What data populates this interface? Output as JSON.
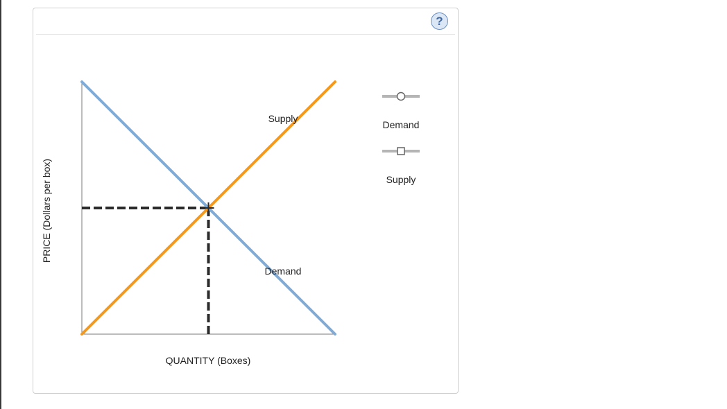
{
  "help": {
    "glyph": "?",
    "icon": "question-mark-icon"
  },
  "colors": {
    "demand": "#7fabd6",
    "supply": "#f4991c",
    "guide": "#2b2b2b",
    "axis": "#7a7a7a",
    "legend_marker": "#b5b5b5",
    "legend_marker_stroke": "#666666"
  },
  "legend": [
    {
      "label": "Demand",
      "marker": "circle"
    },
    {
      "label": "Supply",
      "marker": "square"
    }
  ],
  "chart_data": {
    "type": "line",
    "xlabel": "QUANTITY (Boxes)",
    "ylabel": "PRICE (Dollars per box)",
    "xlim": [
      0,
      1
    ],
    "ylim": [
      0,
      1
    ],
    "ticks_shown": false,
    "grid": false,
    "series": [
      {
        "name": "Demand",
        "x": [
          0,
          1
        ],
        "y": [
          1,
          0
        ]
      },
      {
        "name": "Supply",
        "x": [
          0,
          1
        ],
        "y": [
          0,
          1
        ]
      }
    ],
    "equilibrium": {
      "x": 0.5,
      "y": 0.5,
      "style": "dashed"
    },
    "annotations": [
      "Supply",
      "Demand"
    ],
    "legend_position": "right"
  }
}
